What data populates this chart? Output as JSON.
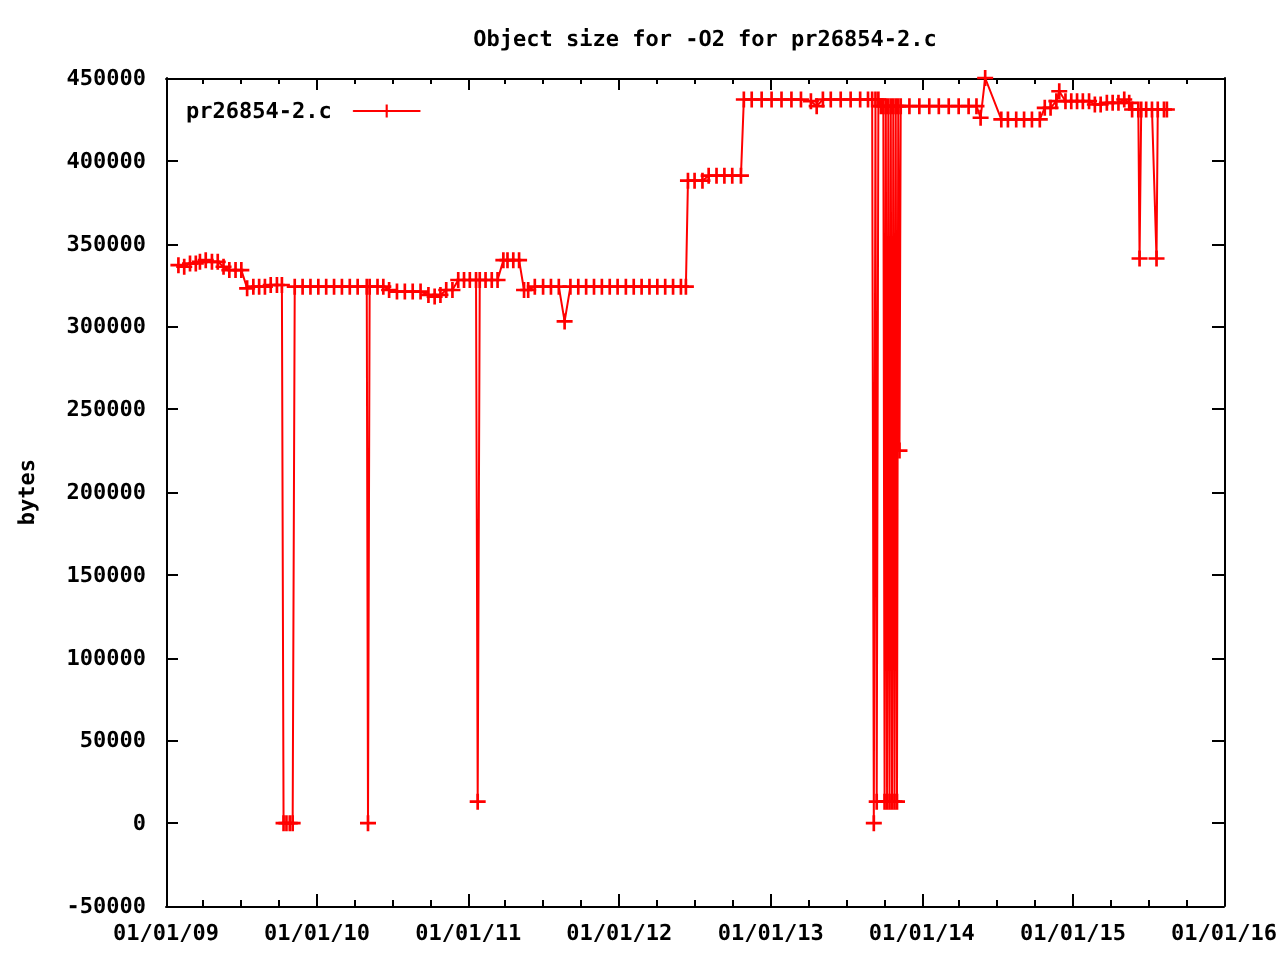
{
  "chart_data": {
    "type": "line",
    "title": "Object size for -O2 for pr26854-2.c",
    "ylabel": "bytes",
    "legend": "top left",
    "marker": "cross",
    "xlim": [
      "2009-01-01",
      "2016-01-01"
    ],
    "xticks": [
      {
        "value": "2009-01-01",
        "label": "01/01/09"
      },
      {
        "value": "2009-04-01",
        "label": null
      },
      {
        "value": "2009-07-01",
        "label": null
      },
      {
        "value": "2009-10-01",
        "label": null
      },
      {
        "value": "2010-01-01",
        "label": "01/01/10"
      },
      {
        "value": "2010-04-01",
        "label": null
      },
      {
        "value": "2010-07-01",
        "label": null
      },
      {
        "value": "2010-10-01",
        "label": null
      },
      {
        "value": "2011-01-01",
        "label": "01/01/11"
      },
      {
        "value": "2011-04-01",
        "label": null
      },
      {
        "value": "2011-07-01",
        "label": null
      },
      {
        "value": "2011-10-01",
        "label": null
      },
      {
        "value": "2012-01-01",
        "label": "01/01/12"
      },
      {
        "value": "2012-04-01",
        "label": null
      },
      {
        "value": "2012-07-01",
        "label": null
      },
      {
        "value": "2012-10-01",
        "label": null
      },
      {
        "value": "2013-01-01",
        "label": "01/01/13"
      },
      {
        "value": "2013-04-01",
        "label": null
      },
      {
        "value": "2013-07-01",
        "label": null
      },
      {
        "value": "2013-10-01",
        "label": null
      },
      {
        "value": "2014-01-01",
        "label": "01/01/14"
      },
      {
        "value": "2014-04-01",
        "label": null
      },
      {
        "value": "2014-07-01",
        "label": null
      },
      {
        "value": "2014-10-01",
        "label": null
      },
      {
        "value": "2015-01-01",
        "label": "01/01/15"
      },
      {
        "value": "2015-04-01",
        "label": null
      },
      {
        "value": "2015-07-01",
        "label": null
      },
      {
        "value": "2015-10-01",
        "label": null
      },
      {
        "value": "2016-01-01",
        "label": "01/01/16"
      }
    ],
    "ylim": [
      -50000,
      450000
    ],
    "yticks": [
      -50000,
      0,
      50000,
      100000,
      150000,
      200000,
      250000,
      300000,
      350000,
      400000,
      450000
    ],
    "x": [
      "2009-01-31",
      "2009-02-14",
      "2009-02-28",
      "2009-03-14",
      "2009-03-24",
      "2009-04-07",
      "2009-04-22",
      "2009-05-06",
      "2009-05-20",
      "2009-06-03",
      "2009-06-18",
      "2009-07-02",
      "2009-07-16",
      "2009-07-31",
      "2009-08-14",
      "2009-08-28",
      "2009-09-11",
      "2009-09-26",
      "2009-10-08",
      "2009-10-12",
      "2009-10-19",
      "2009-10-27",
      "2009-11-03",
      "2009-11-08",
      "2009-11-27",
      "2009-12-16",
      "2010-01-04",
      "2010-01-23",
      "2010-02-11",
      "2010-03-02",
      "2010-03-21",
      "2010-04-09",
      "2010-05-01",
      "2010-05-04",
      "2010-05-08",
      "2010-05-27",
      "2010-06-10",
      "2010-06-24",
      "2010-07-13",
      "2010-08-01",
      "2010-08-20",
      "2010-09-08",
      "2010-09-27",
      "2010-10-12",
      "2010-10-26",
      "2010-11-09",
      "2010-11-24",
      "2010-12-08",
      "2010-12-22",
      "2011-01-05",
      "2011-01-20",
      "2011-01-24",
      "2011-01-29",
      "2011-02-12",
      "2011-02-27",
      "2011-03-13",
      "2011-03-27",
      "2011-04-06",
      "2011-04-20",
      "2011-05-04",
      "2011-05-16",
      "2011-05-26",
      "2011-06-11",
      "2011-07-01",
      "2011-07-20",
      "2011-08-08",
      "2011-08-22",
      "2011-09-05",
      "2011-09-24",
      "2011-10-13",
      "2011-11-01",
      "2011-11-20",
      "2011-12-09",
      "2011-12-28",
      "2012-01-17",
      "2012-02-05",
      "2012-02-24",
      "2012-03-14",
      "2012-04-02",
      "2012-04-21",
      "2012-05-10",
      "2012-05-29",
      "2012-06-10",
      "2012-06-15",
      "2012-07-01",
      "2012-07-20",
      "2012-08-04",
      "2012-08-23",
      "2012-09-11",
      "2012-09-30",
      "2012-10-21",
      "2012-10-28",
      "2012-11-16",
      "2012-12-10",
      "2013-01-03",
      "2013-01-27",
      "2013-02-20",
      "2013-03-15",
      "2013-04-08",
      "2013-04-22",
      "2013-05-07",
      "2013-05-26",
      "2013-06-19",
      "2013-07-13",
      "2013-08-05",
      "2013-08-24",
      "2013-09-03",
      "2013-09-07",
      "2013-09-11",
      "2013-09-14",
      "2013-09-18",
      "2013-09-24",
      "2013-09-30",
      "2013-10-03",
      "2013-10-06",
      "2013-10-09",
      "2013-10-12",
      "2013-10-15",
      "2013-10-18",
      "2013-10-21",
      "2013-10-24",
      "2013-10-27",
      "2013-10-30",
      "2013-11-02",
      "2013-11-05",
      "2013-11-08",
      "2013-11-11",
      "2013-12-02",
      "2013-12-26",
      "2014-01-19",
      "2014-02-11",
      "2014-03-07",
      "2014-03-31",
      "2014-04-24",
      "2014-05-13",
      "2014-05-23",
      "2014-06-03",
      "2014-07-12",
      "2014-07-28",
      "2014-08-17",
      "2014-09-05",
      "2014-09-24",
      "2014-10-13",
      "2014-10-25",
      "2014-11-08",
      "2014-11-22",
      "2014-11-29",
      "2014-12-14",
      "2014-12-28",
      "2015-01-11",
      "2015-01-25",
      "2015-02-09",
      "2015-02-23",
      "2015-03-09",
      "2015-03-24",
      "2015-04-07",
      "2015-04-21",
      "2015-05-05",
      "2015-05-17",
      "2015-05-24",
      "2015-06-08",
      "2015-06-11",
      "2015-06-15",
      "2015-06-27",
      "2015-07-11",
      "2015-07-22",
      "2015-07-25",
      "2015-08-09",
      "2015-08-16"
    ],
    "series": [
      {
        "name": "pr26854-2.c",
        "color": "#ff0000",
        "values": [
          337000,
          336000,
          338000,
          338000,
          339000,
          340000,
          339000,
          339000,
          336000,
          334000,
          334000,
          334000,
          323000,
          324000,
          324000,
          324000,
          325000,
          325000,
          325000,
          0,
          0,
          0,
          0,
          324000,
          324000,
          324000,
          324000,
          324000,
          324000,
          324000,
          324000,
          324000,
          324000,
          0,
          324000,
          324000,
          324000,
          322000,
          321000,
          321000,
          321000,
          321000,
          319000,
          318000,
          319000,
          322000,
          322000,
          328000,
          328000,
          328000,
          328000,
          13000,
          328000,
          328000,
          328000,
          328000,
          340000,
          340000,
          340000,
          340000,
          322000,
          322000,
          324000,
          324000,
          324000,
          324000,
          303000,
          324000,
          324000,
          324000,
          324000,
          324000,
          324000,
          324000,
          324000,
          324000,
          324000,
          324000,
          324000,
          324000,
          324000,
          324000,
          324000,
          388000,
          388000,
          388000,
          391000,
          391000,
          391000,
          391000,
          391000,
          437000,
          437000,
          437000,
          437000,
          437000,
          437000,
          437000,
          436000,
          433000,
          437000,
          437000,
          437000,
          437000,
          437000,
          437000,
          437000,
          0,
          437000,
          13000,
          437000,
          433000,
          433000,
          13000,
          433000,
          13000,
          433000,
          13000,
          433000,
          13000,
          433000,
          13000,
          433000,
          13000,
          433000,
          225000,
          433000,
          433000,
          433000,
          433000,
          433000,
          433000,
          433000,
          433000,
          433000,
          426000,
          450000,
          425000,
          425000,
          425000,
          425000,
          425000,
          425000,
          432000,
          432000,
          436000,
          442000,
          436000,
          436000,
          436000,
          436000,
          436000,
          434000,
          434000,
          435000,
          435000,
          435000,
          437000,
          435000,
          431000,
          431000,
          341000,
          431000,
          431000,
          431000,
          341000,
          431000,
          431000,
          431000
        ]
      }
    ]
  }
}
